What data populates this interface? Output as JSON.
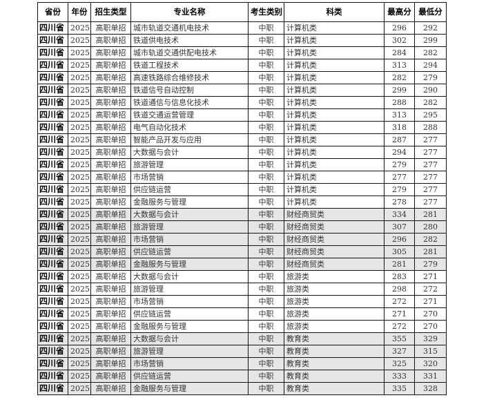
{
  "headers": [
    "省份",
    "年份",
    "招生类型",
    "专业名称",
    "考生类别",
    "科类",
    "最高分",
    "最低分"
  ],
  "rows": [
    [
      "四川省",
      "2025",
      "高职单招",
      "城市轨道交通机电技术",
      "中职",
      "计算机类",
      "296",
      "292"
    ],
    [
      "四川省",
      "2025",
      "高职单招",
      "铁道供电技术",
      "中职",
      "计算机类",
      "302",
      "299"
    ],
    [
      "四川省",
      "2025",
      "高职单招",
      "城市轨道交通供配电技术",
      "中职",
      "计算机类",
      "284",
      "282"
    ],
    [
      "四川省",
      "2025",
      "高职单招",
      "铁道工程技术",
      "中职",
      "计算机类",
      "313",
      "294"
    ],
    [
      "四川省",
      "2025",
      "高职单招",
      "高速铁路综合维修技术",
      "中职",
      "计算机类",
      "282",
      "279"
    ],
    [
      "四川省",
      "2025",
      "高职单招",
      "铁道信号自动控制",
      "中职",
      "计算机类",
      "299",
      "290"
    ],
    [
      "四川省",
      "2025",
      "高职单招",
      "铁道通信与信息化技术",
      "中职",
      "计算机类",
      "288",
      "282"
    ],
    [
      "四川省",
      "2025",
      "高职单招",
      "铁道交通运营管理",
      "中职",
      "计算机类",
      "313",
      "295"
    ],
    [
      "四川省",
      "2025",
      "高职单招",
      "电气自动化技术",
      "中职",
      "计算机类",
      "318",
      "288"
    ],
    [
      "四川省",
      "2025",
      "高职单招",
      "智能产品开发与应用",
      "中职",
      "计算机类",
      "287",
      "277"
    ],
    [
      "四川省",
      "2025",
      "高职单招",
      "大数据与会计",
      "中职",
      "计算机类",
      "294",
      "277"
    ],
    [
      "四川省",
      "2025",
      "高职单招",
      "旅游管理",
      "中职",
      "计算机类",
      "279",
      "277"
    ],
    [
      "四川省",
      "2025",
      "高职单招",
      "市场营销",
      "中职",
      "计算机类",
      "277",
      "277"
    ],
    [
      "四川省",
      "2025",
      "高职单招",
      "供应链运营",
      "中职",
      "计算机类",
      "279",
      "277"
    ],
    [
      "四川省",
      "2025",
      "高职单招",
      "金融服务与管理",
      "中职",
      "计算机类",
      "278",
      "277"
    ],
    [
      "四川省",
      "2025",
      "高职单招",
      "大数据与会计",
      "中职",
      "财经商贸类",
      "334",
      "281"
    ],
    [
      "四川省",
      "2025",
      "高职单招",
      "旅游管理",
      "中职",
      "财经商贸类",
      "307",
      "280"
    ],
    [
      "四川省",
      "2025",
      "高职单招",
      "市场营销",
      "中职",
      "财经商贸类",
      "296",
      "282"
    ],
    [
      "四川省",
      "2025",
      "高职单招",
      "供应链运营",
      "中职",
      "财经商贸类",
      "305",
      "281"
    ],
    [
      "四川省",
      "2025",
      "高职单招",
      "金融服务与管理",
      "中职",
      "财经商贸类",
      "281",
      "279"
    ],
    [
      "四川省",
      "2025",
      "高职单招",
      "大数据与会计",
      "中职",
      "旅游类",
      "283",
      "271"
    ],
    [
      "四川省",
      "2025",
      "高职单招",
      "旅游管理",
      "中职",
      "旅游类",
      "298",
      "272"
    ],
    [
      "四川省",
      "2025",
      "高职单招",
      "市场营销",
      "中职",
      "旅游类",
      "272",
      "271"
    ],
    [
      "四川省",
      "2025",
      "高职单招",
      "供应链运营",
      "中职",
      "旅游类",
      "271",
      "270"
    ],
    [
      "四川省",
      "2025",
      "高职单招",
      "金融服务与管理",
      "中职",
      "旅游类",
      "272",
      "270"
    ],
    [
      "四川省",
      "2025",
      "高职单招",
      "大数据与会计",
      "中职",
      "教育类",
      "355",
      "329"
    ],
    [
      "四川省",
      "2025",
      "高职单招",
      "旅游管理",
      "中职",
      "教育类",
      "327",
      "315"
    ],
    [
      "四川省",
      "2025",
      "高职单招",
      "市场营销",
      "中职",
      "教育类",
      "325",
      "320"
    ],
    [
      "四川省",
      "2025",
      "高职单招",
      "供应链运营",
      "中职",
      "教育类",
      "333",
      "331"
    ],
    [
      "四川省",
      "2025",
      "高职单招",
      "金融服务与管理",
      "中职",
      "教育类",
      "335",
      "328"
    ]
  ],
  "shaded_categories": [
    "财经商贸类",
    "教育类"
  ],
  "colors": {
    "shade": "#e6e6e6",
    "border": "#111111"
  }
}
